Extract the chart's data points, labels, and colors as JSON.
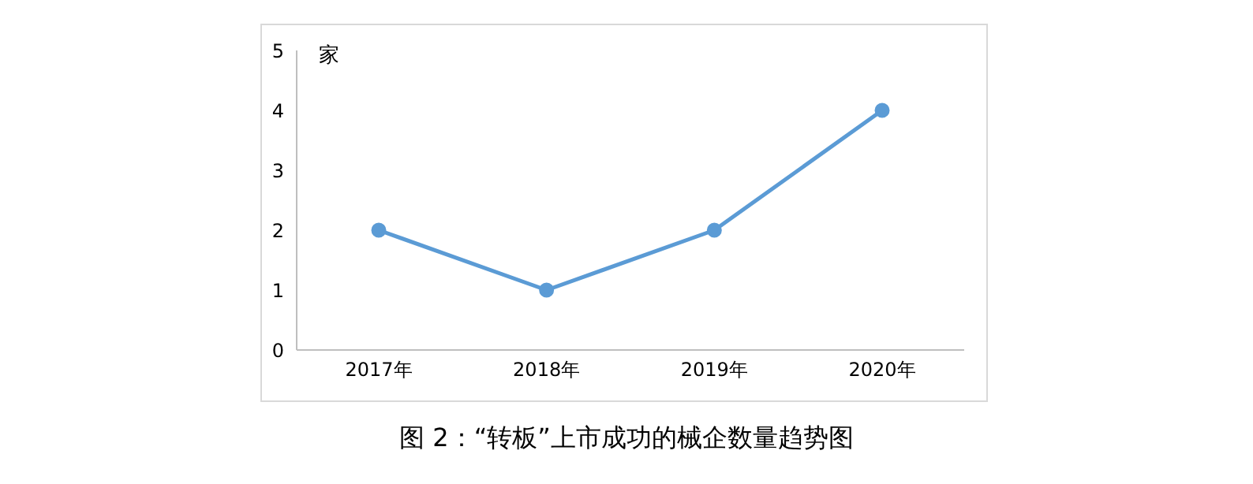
{
  "chart_data": {
    "type": "line",
    "title": "图 2：“转板”上市成功的械企数量趋势图",
    "ylabel": "家",
    "categories": [
      "2017年",
      "2018年",
      "2019年",
      "2020年"
    ],
    "series": [
      {
        "color": "#5b9bd5",
        "values": [
          2,
          1,
          2,
          4
        ]
      }
    ],
    "ylim": [
      0,
      5
    ],
    "yticks": [
      0,
      1,
      2,
      3,
      4,
      5
    ],
    "grid": false,
    "legend": false,
    "marker": "circle",
    "line_style": "solid"
  }
}
